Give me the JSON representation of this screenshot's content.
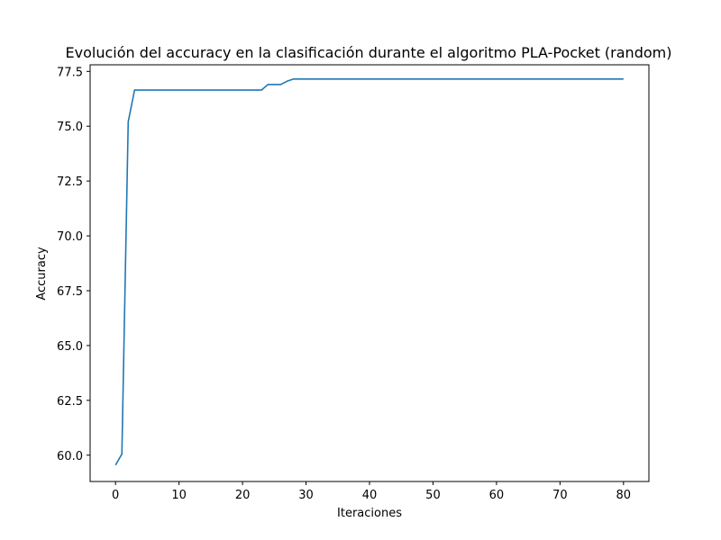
{
  "chart_data": {
    "type": "line",
    "title": "Evolución del accuracy en la clasificación durante el algoritmo PLA-Pocket (random)",
    "xlabel": "Iteraciones",
    "ylabel": "Accuracy",
    "xlim": [
      -4,
      84
    ],
    "ylim": [
      58.8,
      77.8
    ],
    "xticks": [
      0,
      10,
      20,
      30,
      40,
      50,
      60,
      70,
      80
    ],
    "yticks": [
      60.0,
      62.5,
      65.0,
      67.5,
      70.0,
      72.5,
      75.0,
      77.5
    ],
    "xtick_labels": [
      "0",
      "10",
      "20",
      "30",
      "40",
      "50",
      "60",
      "70",
      "80"
    ],
    "ytick_labels": [
      "60.0",
      "62.5",
      "65.0",
      "67.5",
      "70.0",
      "72.5",
      "75.0",
      "77.5"
    ],
    "grid": false,
    "series": [
      {
        "color": "#1f77b4",
        "x": [
          0,
          1,
          2,
          3,
          23,
          24,
          26,
          27,
          28,
          80
        ],
        "y": [
          59.55,
          60.05,
          75.2,
          76.65,
          76.65,
          76.9,
          76.9,
          77.05,
          77.15,
          77.15
        ]
      }
    ]
  }
}
